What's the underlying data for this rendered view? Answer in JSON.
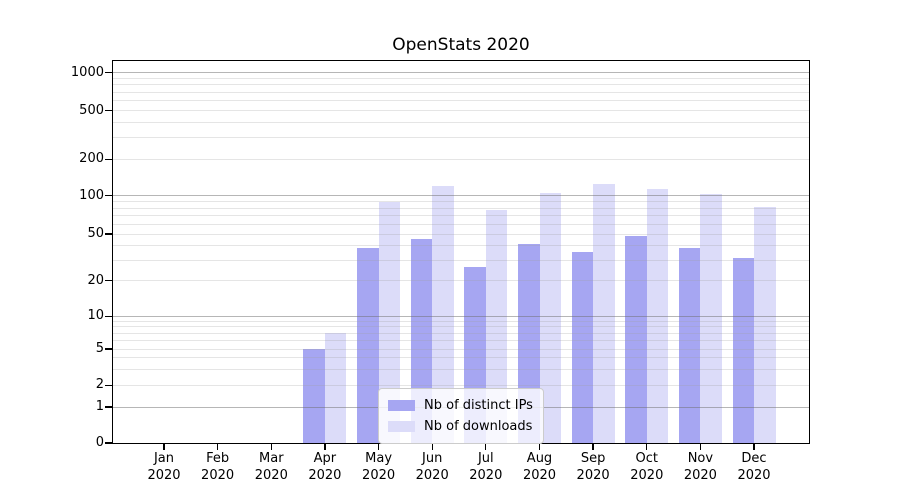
{
  "chart_data": {
    "type": "bar",
    "title": "OpenStats 2020",
    "categories": [
      "Jan",
      "Feb",
      "Mar",
      "Apr",
      "May",
      "Jun",
      "Jul",
      "Aug",
      "Sep",
      "Oct",
      "Nov",
      "Dec"
    ],
    "year": "2020",
    "series": [
      {
        "name": "Nb of distinct IPs",
        "color": "#a6a6f2",
        "values": [
          0,
          0,
          0,
          5,
          38,
          45,
          26,
          41,
          35,
          48,
          38,
          31
        ]
      },
      {
        "name": "Nb of downloads",
        "color": "#dcdcf9",
        "values": [
          0,
          0,
          0,
          7,
          90,
          120,
          77,
          105,
          126,
          113,
          104,
          82
        ]
      }
    ],
    "xlabel": "",
    "ylabel": "",
    "y_axis": {
      "scale": "log-like with linear segment near zero (symlog/asinh)",
      "tick_values": [
        0,
        1,
        2,
        5,
        10,
        20,
        50,
        100,
        200,
        500,
        1000
      ],
      "major_grid_values": [
        1,
        10,
        100,
        1000
      ],
      "minor_grid_values": [
        2,
        3,
        4,
        5,
        6,
        7,
        8,
        9,
        20,
        30,
        40,
        50,
        60,
        70,
        80,
        90,
        200,
        300,
        400,
        500,
        600,
        700,
        800,
        900
      ]
    },
    "layout": {
      "grid": "on, gridlines visible over bars",
      "legend_position": "inside axes, lower center-left",
      "bar_group": "two bars side by side per month, no gap within pair",
      "anchors_value_to_heightfrac": [
        [
          0,
          0
        ],
        [
          1,
          0.094
        ],
        [
          2,
          0.151
        ],
        [
          5,
          0.246
        ],
        [
          10,
          0.332
        ],
        [
          20,
          0.425
        ],
        [
          50,
          0.547
        ],
        [
          100,
          0.647
        ],
        [
          200,
          0.743
        ],
        [
          500,
          0.87
        ],
        [
          1000,
          0.97
        ]
      ]
    },
    "colors": {
      "distinct_ips_bar": "#a6a6f2",
      "downloads_bar": "#dcdcf9",
      "major_gridline": "#b6b6b6",
      "minor_gridline": "#e2e2e2",
      "axis_spine": "#000000"
    }
  }
}
